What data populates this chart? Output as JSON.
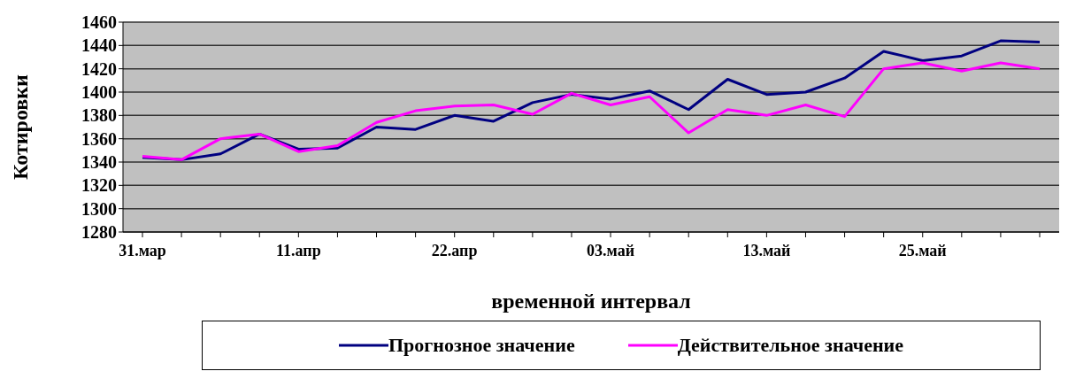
{
  "chart_data": {
    "type": "line",
    "xlabel": "временной интервал",
    "ylabel": "Котировки",
    "categories": [
      "31.мар",
      null,
      null,
      null,
      "11.апр",
      null,
      null,
      null,
      "22.апр",
      null,
      null,
      null,
      "03.май",
      null,
      null,
      null,
      "13.май",
      null,
      null,
      null,
      "25.май",
      null,
      null,
      null
    ],
    "series": [
      {
        "name": "Прогнозное значение",
        "color": "#000080",
        "values": [
          1344,
          1342,
          1347,
          1364,
          1351,
          1352,
          1370,
          1368,
          1380,
          1375,
          1391,
          1398,
          1394,
          1401,
          1385,
          1411,
          1398,
          1400,
          1412,
          1435,
          1427,
          1431,
          1444,
          1443
        ]
      },
      {
        "name": "Действительное значение",
        "color": "#ff00ff",
        "values": [
          1345,
          1342,
          1360,
          1364,
          1349,
          1354,
          1374,
          1384,
          1388,
          1389,
          1381,
          1399,
          1389,
          1396,
          1365,
          1385,
          1380,
          1389,
          1379,
          1420,
          1425,
          1418,
          1425,
          1420
        ]
      }
    ],
    "ylim": [
      1280,
      1460
    ],
    "yticks": [
      1280,
      1300,
      1320,
      1340,
      1360,
      1380,
      1400,
      1420,
      1440,
      1460
    ],
    "grid": "y",
    "legend": "bottom",
    "marker": "none",
    "line_style": "solid"
  }
}
